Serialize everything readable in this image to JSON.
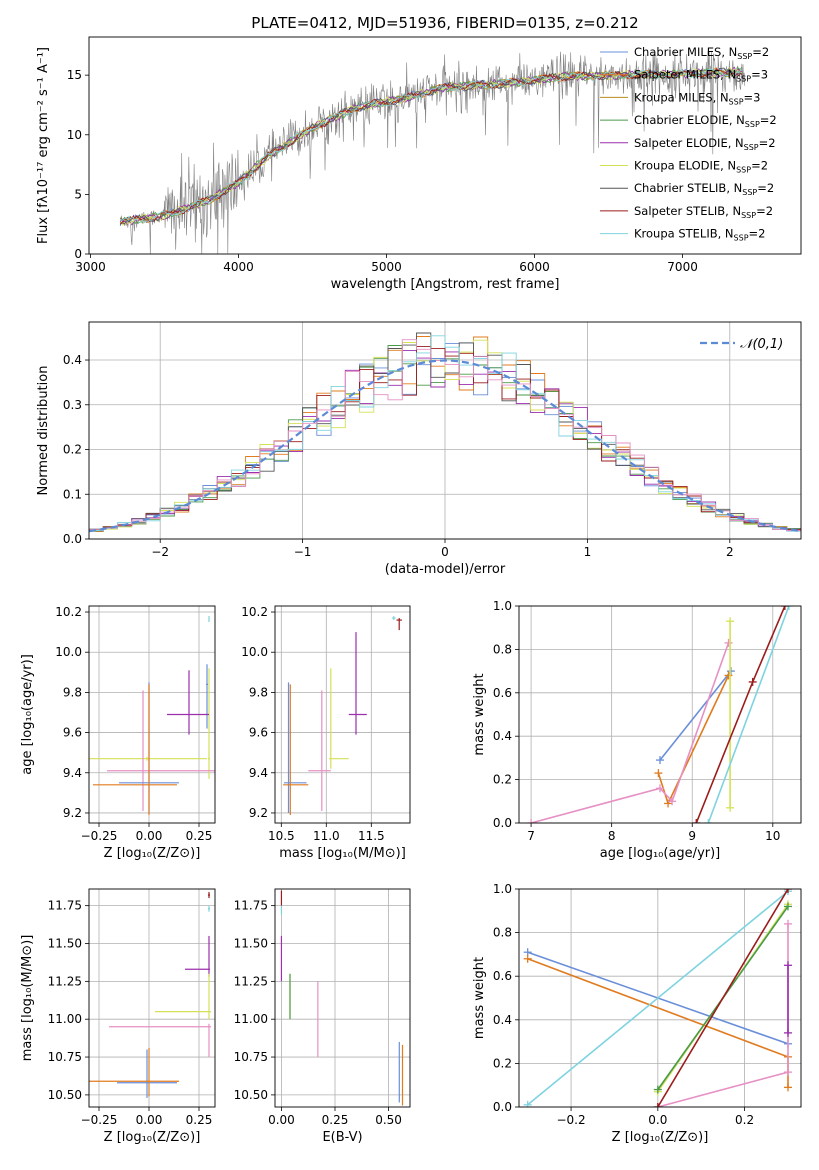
{
  "title": "PLATE=0412, MJD=51936, FIBERID=0135, z=0.212",
  "chart_data": [
    {
      "id": "spectrum",
      "type": "line",
      "xlabel": "wavelength [Angstrom, rest frame]",
      "ylabel": "Flux [fλ10⁻¹⁷ erg cm⁻² s⁻¹ A⁻¹]",
      "xlim": [
        2990,
        7800
      ],
      "ylim": [
        0,
        18.2
      ],
      "xticks": [
        "3000",
        "4000",
        "5000",
        "6000",
        "7000"
      ],
      "yticks": [
        "0",
        "5",
        "10",
        "15"
      ],
      "grid": false,
      "legend_position": "bottom-right",
      "legend": [
        {
          "name": "Chabrier MILES, N",
          "sub": "SSP",
          "tail": "=2",
          "color": "#6a8fd8"
        },
        {
          "name": "Salpeter MILES, N",
          "sub": "SSP",
          "tail": "=3",
          "color": "#e07b1f"
        },
        {
          "name": "Kroupa MILES, N",
          "sub": "SSP",
          "tail": "=3",
          "color": "#b98c1f"
        },
        {
          "name": "Chabrier ELODIE, N",
          "sub": "SSP",
          "tail": "=2",
          "color": "#4a9a4a"
        },
        {
          "name": "Salpeter ELODIE, N",
          "sub": "SSP",
          "tail": "=2",
          "color": "#9b2fae"
        },
        {
          "name": "Kroupa ELODIE, N",
          "sub": "SSP",
          "tail": "=2",
          "color": "#d4e157"
        },
        {
          "name": "Chabrier STELIB, N",
          "sub": "SSP",
          "tail": "=2",
          "color": "#555555"
        },
        {
          "name": "Salpeter STELIB, N",
          "sub": "SSP",
          "tail": "=2",
          "color": "#9b1c1c"
        },
        {
          "name": "Kroupa STELIB, N",
          "sub": "SSP",
          "tail": "=2",
          "color": "#7fd3e0"
        }
      ],
      "data_series": {
        "name": "data",
        "color": "#808080"
      },
      "continuum_anchor_points": {
        "x": [
          3200,
          3500,
          3800,
          4000,
          4200,
          4500,
          4800,
          5100,
          5400,
          5800,
          6200,
          6600,
          7000,
          7400
        ],
        "y": [
          2.7,
          3.2,
          4.5,
          6.0,
          8.2,
          10.6,
          12.3,
          13.0,
          14.0,
          14.3,
          14.9,
          15.0,
          15.1,
          15.3
        ]
      }
    },
    {
      "id": "residuals",
      "type": "histogram",
      "xlabel": "(data-model)/error",
      "ylabel": "Normed distribution",
      "xlim": [
        -2.5,
        2.5
      ],
      "ylim": [
        0,
        0.485
      ],
      "xticks": [
        "−2",
        "−1",
        "0",
        "1",
        "2"
      ],
      "yticks": [
        "0.0",
        "0.1",
        "0.2",
        "0.3",
        "0.4"
      ],
      "grid": true,
      "legend_position": "top-right",
      "legend_label": "𝒩(0,1)",
      "reference_curve": {
        "type": "normal",
        "mean": 0,
        "sigma": 1,
        "color": "#5b8ad6"
      },
      "bin_edges_range": [
        -2.5,
        2.5
      ],
      "n_bins": 50
    },
    {
      "id": "age_vs_Z",
      "type": "errorbar",
      "xlabel": "Z [log₁₀(Z/Z⊙)]",
      "ylabel": "age  [log₁₀(age/yr)]",
      "xlim": [
        -0.3,
        0.33
      ],
      "ylim": [
        9.15,
        10.23
      ],
      "xticks": [
        "−0.25",
        "0.00",
        "0.25"
      ],
      "yticks": [
        "9.2",
        "9.4",
        "9.6",
        "9.8",
        "10.0",
        "10.2"
      ],
      "grid": true,
      "points": [
        {
          "x": 0.3,
          "y": 10.17,
          "xerr": [
            0.002,
            0.002
          ],
          "yerr": [
            0.02,
            0.01
          ],
          "color": "#7fd3e0"
        },
        {
          "x": 0.29,
          "y": 9.84,
          "xerr": [
            0.005,
            0.005
          ],
          "yerr": [
            0.22,
            0.1
          ],
          "color": "#6a8fd8"
        },
        {
          "x": 0.3,
          "y": 9.47,
          "xerr": [
            0.005,
            0.005
          ],
          "yerr": [
            0.1,
            0.45
          ],
          "color": "#d4e157"
        },
        {
          "x": 0.2,
          "y": 9.69,
          "xerr": [
            0.11,
            0.1
          ],
          "yerr": [
            0.1,
            0.22
          ],
          "color": "#9b2fae"
        },
        {
          "x": -0.01,
          "y": 9.47,
          "xerr": [
            0.38,
            0.3
          ],
          "yerr": [
            0.01,
            0.01
          ],
          "color": "#d4e157"
        },
        {
          "x": -0.03,
          "y": 9.41,
          "xerr": [
            0.18,
            0.6
          ],
          "yerr": [
            0.2,
            0.4
          ],
          "color": "#e690c4"
        },
        {
          "x": 0.0,
          "y": 9.35,
          "xerr": [
            0.15,
            0.15
          ],
          "yerr": [
            0.15,
            0.5
          ],
          "color": "#6a8fd8"
        },
        {
          "x": 0.0,
          "y": 9.34,
          "xerr": [
            0.28,
            0.14
          ],
          "yerr": [
            0.15,
            0.5
          ],
          "color": "#e07b1f"
        }
      ]
    },
    {
      "id": "age_vs_mass",
      "type": "errorbar",
      "xlabel": "mass [log₁₀(M/M⊙)]",
      "ylabel": "",
      "xlim": [
        10.43,
        11.93
      ],
      "ylim": [
        9.15,
        10.23
      ],
      "xticks": [
        "10.5",
        "11.0",
        "11.5"
      ],
      "yticks": [
        "9.2",
        "9.4",
        "9.6",
        "9.8",
        "10.0",
        "10.2"
      ],
      "grid": true,
      "points": [
        {
          "x": 11.75,
          "y": 10.17,
          "xerr": [
            0.02,
            0.02
          ],
          "yerr": [
            0.01,
            0.01
          ],
          "color": "#7fd3e0"
        },
        {
          "x": 11.81,
          "y": 10.16,
          "xerr": [
            0.03,
            0.03
          ],
          "yerr": [
            0.05,
            0.01
          ],
          "color": "#9b1c1c"
        },
        {
          "x": 11.33,
          "y": 9.69,
          "xerr": [
            0.08,
            0.12
          ],
          "yerr": [
            0.1,
            0.41
          ],
          "color": "#9b2fae"
        },
        {
          "x": 11.05,
          "y": 9.47,
          "xerr": [
            0.02,
            0.2
          ],
          "yerr": [
            0.05,
            0.45
          ],
          "color": "#d4e157"
        },
        {
          "x": 10.95,
          "y": 9.41,
          "xerr": [
            0.15,
            0.1
          ],
          "yerr": [
            0.2,
            0.4
          ],
          "color": "#e690c4"
        },
        {
          "x": 10.58,
          "y": 9.35,
          "xerr": [
            0.05,
            0.2
          ],
          "yerr": [
            0.15,
            0.5
          ],
          "color": "#6a8fd8"
        },
        {
          "x": 10.6,
          "y": 9.34,
          "xerr": [
            0.08,
            0.2
          ],
          "yerr": [
            0.15,
            0.5
          ],
          "color": "#e07b1f"
        }
      ]
    },
    {
      "id": "massweight_vs_age",
      "type": "line",
      "xlabel": "age  [log₁₀(age/yr)]",
      "ylabel": "mass weight",
      "xlim": [
        6.85,
        10.35
      ],
      "ylim": [
        0,
        1.0
      ],
      "xticks": [
        "7",
        "8",
        "9",
        "10"
      ],
      "yticks": [
        "0.0",
        "0.2",
        "0.4",
        "0.6",
        "0.8",
        "1.0"
      ],
      "grid": true,
      "series": [
        {
          "color": "#6a8fd8",
          "x": [
            8.6,
            9.48
          ],
          "y": [
            0.29,
            0.7
          ]
        },
        {
          "color": "#e07b1f",
          "x": [
            8.58,
            8.7,
            9.45
          ],
          "y": [
            0.23,
            0.09,
            0.68
          ]
        },
        {
          "color": "#e690c4",
          "x": [
            7.0,
            8.6,
            8.75,
            9.45
          ],
          "y": [
            0.0,
            0.16,
            0.1,
            0.83
          ]
        },
        {
          "color": "#d4e157",
          "x": [
            9.47,
            9.47
          ],
          "y": [
            0.07,
            0.93
          ]
        },
        {
          "color": "#7fd3e0",
          "x": [
            9.2,
            10.2
          ],
          "y": [
            0.0,
            1.0
          ]
        },
        {
          "color": "#9b1c1c",
          "x": [
            9.05,
            9.75,
            10.15
          ],
          "y": [
            0.0,
            0.65,
            1.0
          ]
        }
      ]
    },
    {
      "id": "mass_vs_Z",
      "type": "errorbar",
      "xlabel": "Z [log₁₀(Z/Z⊙)]",
      "ylabel": "mass [log₁₀(M/M⊙)]",
      "xlim": [
        -0.3,
        0.33
      ],
      "ylim": [
        10.42,
        11.86
      ],
      "xticks": [
        "−0.25",
        "0.00",
        "0.25"
      ],
      "yticks": [
        "10.50",
        "10.75",
        "11.00",
        "11.25",
        "11.50",
        "11.75"
      ],
      "grid": true,
      "points": [
        {
          "x": 0.3,
          "y": 11.82,
          "xerr": [
            0.005,
            0.005
          ],
          "yerr": [
            0.02,
            0.02
          ],
          "color": "#9b1c1c"
        },
        {
          "x": 0.3,
          "y": 11.73,
          "xerr": [
            0.005,
            0.005
          ],
          "yerr": [
            0.02,
            0.02
          ],
          "color": "#7fd3e0"
        },
        {
          "x": 0.3,
          "y": 11.33,
          "xerr": [
            0.12,
            0.005
          ],
          "yerr": [
            0.05,
            0.22
          ],
          "color": "#9b2fae"
        },
        {
          "x": 0.3,
          "y": 11.05,
          "xerr": [
            0.27,
            0.01
          ],
          "yerr": [
            0.05,
            0.25
          ],
          "color": "#d4e157"
        },
        {
          "x": 0.3,
          "y": 10.95,
          "xerr": [
            0.5,
            0.01
          ],
          "yerr": [
            0.2,
            0.02
          ],
          "color": "#e690c4"
        },
        {
          "x": -0.01,
          "y": 10.58,
          "xerr": [
            0.15,
            0.15
          ],
          "yerr": [
            0.1,
            0.22
          ],
          "color": "#6a8fd8"
        },
        {
          "x": 0.0,
          "y": 10.59,
          "xerr": [
            0.3,
            0.15
          ],
          "yerr": [
            0.1,
            0.22
          ],
          "color": "#e07b1f"
        }
      ]
    },
    {
      "id": "mass_vs_EBV",
      "type": "errorbar",
      "xlabel": "E(B-V)",
      "ylabel": "",
      "xlim": [
        -0.03,
        0.6
      ],
      "ylim": [
        10.42,
        11.86
      ],
      "xticks": [
        "0.00",
        "0.25",
        "0.50"
      ],
      "yticks": [
        "10.50",
        "10.75",
        "11.00",
        "11.25",
        "11.50",
        "11.75"
      ],
      "grid": true,
      "points": [
        {
          "x": 0.0,
          "y": 11.8,
          "xerr": [
            0,
            0
          ],
          "yerr": [
            0.05,
            0.05
          ],
          "color": "#9b1c1c"
        },
        {
          "x": 0.0,
          "y": 11.72,
          "xerr": [
            0,
            0
          ],
          "yerr": [
            0.03,
            0.03
          ],
          "color": "#7fd3e0"
        },
        {
          "x": 0.0,
          "y": 11.4,
          "xerr": [
            0,
            0
          ],
          "yerr": [
            0.15,
            0.15
          ],
          "color": "#9b2fae"
        },
        {
          "x": 0.04,
          "y": 11.15,
          "xerr": [
            0,
            0
          ],
          "yerr": [
            0.15,
            0.15
          ],
          "color": "#d4e157"
        },
        {
          "x": 0.04,
          "y": 11.15,
          "xerr": [
            0,
            0
          ],
          "yerr": [
            0.15,
            0.15
          ],
          "color": "#4a9a4a"
        },
        {
          "x": 0.17,
          "y": 11.0,
          "xerr": [
            0,
            0
          ],
          "yerr": [
            0.25,
            0.25
          ],
          "color": "#e690c4"
        },
        {
          "x": 0.55,
          "y": 10.65,
          "xerr": [
            0,
            0
          ],
          "yerr": [
            0.2,
            0.2
          ],
          "color": "#6a8fd8"
        },
        {
          "x": 0.565,
          "y": 10.63,
          "xerr": [
            0,
            0
          ],
          "yerr": [
            0.2,
            0.2
          ],
          "color": "#e07b1f"
        }
      ]
    },
    {
      "id": "massweight_vs_Z",
      "type": "line",
      "xlabel": "Z [log₁₀(Z/Z⊙)]",
      "ylabel": "mass weight",
      "xlim": [
        -0.32,
        0.33
      ],
      "ylim": [
        0,
        1.0
      ],
      "xticks": [
        "−0.2",
        "0.0",
        "0.2"
      ],
      "yticks": [
        "0.0",
        "0.2",
        "0.4",
        "0.6",
        "0.8",
        "1.0"
      ],
      "grid": true,
      "series": [
        {
          "color": "#6a8fd8",
          "x": [
            -0.3,
            0.3
          ],
          "y": [
            0.71,
            0.29
          ]
        },
        {
          "color": "#e07b1f",
          "x": [
            -0.3,
            0.3,
            0.3
          ],
          "y": [
            0.68,
            0.23,
            0.09
          ]
        },
        {
          "color": "#7fd3e0",
          "x": [
            -0.3,
            0.3
          ],
          "y": [
            0.01,
            0.99
          ]
        },
        {
          "color": "#e690c4",
          "x": [
            0.0,
            0.3,
            0.3
          ],
          "y": [
            0.0,
            0.16,
            0.84
          ]
        },
        {
          "color": "#9b2fae",
          "x": [
            0.3,
            0.3
          ],
          "y": [
            0.34,
            0.65
          ]
        },
        {
          "color": "#d4e157",
          "x": [
            0.0,
            0.3
          ],
          "y": [
            0.07,
            0.93
          ]
        },
        {
          "color": "#4a9a4a",
          "x": [
            0.0,
            0.3
          ],
          "y": [
            0.08,
            0.92
          ]
        },
        {
          "color": "#9b1c1c",
          "x": [
            0.0,
            0.3
          ],
          "y": [
            0.0,
            1.0
          ]
        }
      ]
    }
  ]
}
